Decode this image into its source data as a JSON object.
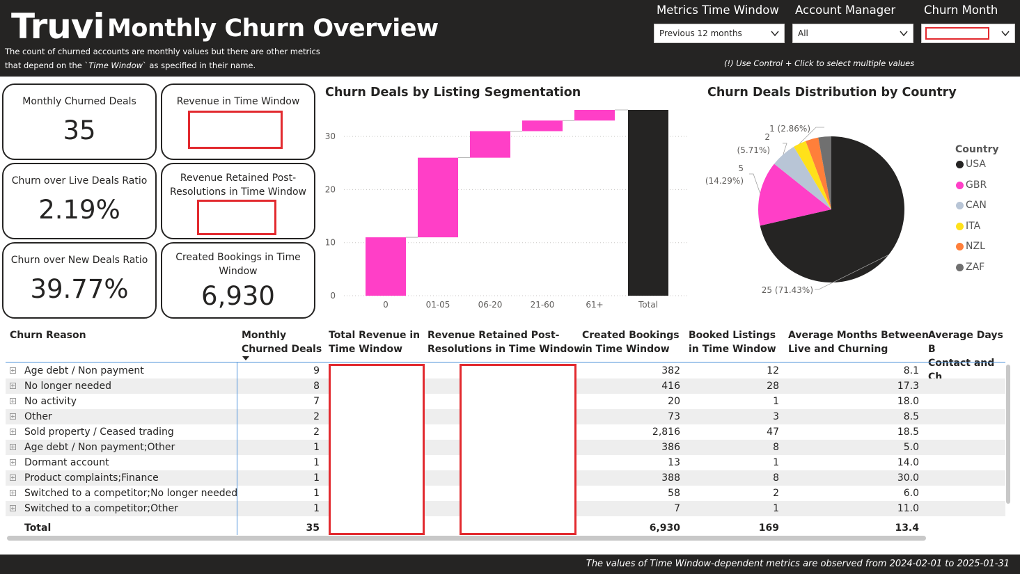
{
  "header": {
    "logo": "Truvi",
    "title": "Monthly Churn Overview",
    "subtitle_before": "The count of churned accounts are monthly values but there are other metrics that depend on the `",
    "subtitle_italic": "Time Window",
    "subtitle_after": "` as specified in their name.",
    "hint": "(!) Use Control + Click to select multiple values"
  },
  "filters": {
    "time_window": {
      "label": "Metrics Time Window",
      "value": "Previous 12 months"
    },
    "account_manager": {
      "label": "Account Manager",
      "value": "All"
    },
    "churn_month": {
      "label": "Churn Month",
      "value": ""
    }
  },
  "kpis": {
    "churned_deals": {
      "label": "Monthly Churned Deals",
      "value": "35"
    },
    "revenue": {
      "label": "Revenue in Time Window",
      "value": ""
    },
    "live_ratio": {
      "label": "Churn over Live Deals Ratio",
      "value": "2.19%"
    },
    "revenue_retained": {
      "label": "Revenue Retained Post-Resolutions in Time Window",
      "value": ""
    },
    "new_ratio": {
      "label": "Churn over New Deals Ratio",
      "value": "39.77%"
    },
    "bookings": {
      "label": "Created Bookings in Time Window",
      "value": "6,930"
    }
  },
  "waterfall_title": "Churn Deals by Listing Segmentation",
  "pie_title": "Churn Deals Distribution by Country",
  "colors": {
    "accent": "#ff3fc7",
    "dark": "#252423",
    "redaction": "#e22a2f",
    "gbr": "#ff3fc7",
    "usa": "#252423",
    "can": "#b8c5d6",
    "ita": "#ffe11a",
    "nzl": "#ff7f3a",
    "zaf": "#707070"
  },
  "chart_data": [
    {
      "type": "bar",
      "subtype": "waterfall",
      "title": "Churn Deals by Listing Segmentation",
      "categories": [
        "0",
        "01-05",
        "06-20",
        "21-60",
        "61+",
        "Total"
      ],
      "values": [
        11,
        15,
        5,
        2,
        2,
        35
      ],
      "ylim": [
        0,
        35
      ],
      "yticks": [
        0,
        10,
        20,
        30
      ],
      "grid": true
    },
    {
      "type": "pie",
      "title": "Churn Deals Distribution by Country",
      "legend_title": "Country",
      "legend_position": "right",
      "slices": [
        {
          "name": "USA",
          "value": 25,
          "label": "25 (71.43%)"
        },
        {
          "name": "GBR",
          "value": 5,
          "label_value": "5",
          "label_pct": "(14.29%)"
        },
        {
          "name": "CAN",
          "value": 2,
          "label_value": "2",
          "label_pct": "(5.71%)"
        },
        {
          "name": "ITA",
          "value": 1,
          "label": "1 (2.86%)"
        },
        {
          "name": "NZL",
          "value": 1
        },
        {
          "name": "ZAF",
          "value": 1
        }
      ]
    },
    {
      "type": "table",
      "columns": [
        "Churn Reason",
        "Monthly Churned Deals",
        "Total Revenue in Time Window",
        "Revenue Retained Post-Resolutions in Time Window",
        "Created Bookings in Time Window",
        "Booked Listings in Time Window",
        "Average Months Between Live and Churning",
        "Average Days B Contact and Ch"
      ],
      "rows": [
        {
          "reason": "Age debt / Non payment",
          "deals": "9",
          "bookings": "382",
          "listings": "12",
          "months": "8.1"
        },
        {
          "reason": "No longer needed",
          "deals": "8",
          "bookings": "416",
          "listings": "28",
          "months": "17.3"
        },
        {
          "reason": "No activity",
          "deals": "7",
          "bookings": "20",
          "listings": "1",
          "months": "18.0"
        },
        {
          "reason": "Other",
          "deals": "2",
          "bookings": "73",
          "listings": "3",
          "months": "8.5"
        },
        {
          "reason": "Sold property / Ceased trading",
          "deals": "2",
          "bookings": "2,816",
          "listings": "47",
          "months": "18.5"
        },
        {
          "reason": "Age debt / Non payment;Other",
          "deals": "1",
          "bookings": "386",
          "listings": "8",
          "months": "5.0"
        },
        {
          "reason": "Dormant account",
          "deals": "1",
          "bookings": "13",
          "listings": "1",
          "months": "14.0"
        },
        {
          "reason": "Product complaints;Finance",
          "deals": "1",
          "bookings": "388",
          "listings": "8",
          "months": "30.0"
        },
        {
          "reason": "Switched to a competitor;No longer needed",
          "deals": "1",
          "bookings": "58",
          "listings": "2",
          "months": "6.0"
        },
        {
          "reason": "Switched to a competitor;Other",
          "deals": "1",
          "bookings": "7",
          "listings": "1",
          "months": "11.0"
        }
      ],
      "total": {
        "reason": "Total",
        "deals": "35",
        "bookings": "6,930",
        "listings": "169",
        "months": "13.4"
      }
    }
  ],
  "table_headers": {
    "reason": "Churn Reason",
    "deals_1": "Monthly",
    "deals_2": "Churned Deals",
    "revenue_1": "Total Revenue in",
    "revenue_2": "Time Window",
    "retained_1": "Revenue Retained Post-",
    "retained_2": "Resolutions in Time Window",
    "bookings_1": "Created Bookings",
    "bookings_2": "in Time Window",
    "listings_1": "Booked Listings",
    "listings_2": "in Time Window",
    "months_1": "Average Months Between",
    "months_2": "Live and Churning",
    "days_1": "Average Days B",
    "days_2": "Contact and Ch"
  },
  "footer": "The values of Time Window-dependent metrics are observed from 2024-02-01 to 2025-01-31"
}
